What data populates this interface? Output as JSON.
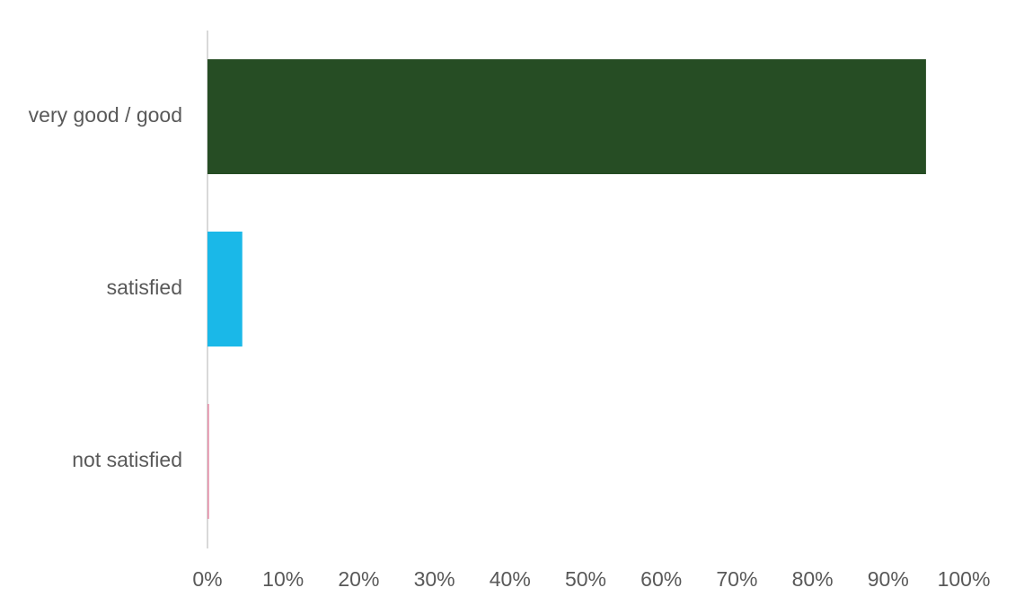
{
  "chart_data": {
    "type": "bar",
    "categories": [
      "very good / good",
      "satisfied",
      "not satisfied"
    ],
    "values": [
      95,
      4.6,
      0.2
    ],
    "colors": [
      "#264d24",
      "#1ab8e8",
      "#e58fa8"
    ],
    "xlim": [
      0,
      100
    ],
    "xticks": [
      {
        "value": 0,
        "label": "0%"
      },
      {
        "value": 10,
        "label": "10%"
      },
      {
        "value": 20,
        "label": "20%"
      },
      {
        "value": 30,
        "label": "30%"
      },
      {
        "value": 40,
        "label": "40%"
      },
      {
        "value": 50,
        "label": "50%"
      },
      {
        "value": 60,
        "label": "60%"
      },
      {
        "value": 70,
        "label": "70%"
      },
      {
        "value": 80,
        "label": "80%"
      },
      {
        "value": 90,
        "label": "90%"
      },
      {
        "value": 100,
        "label": "100%"
      }
    ]
  }
}
